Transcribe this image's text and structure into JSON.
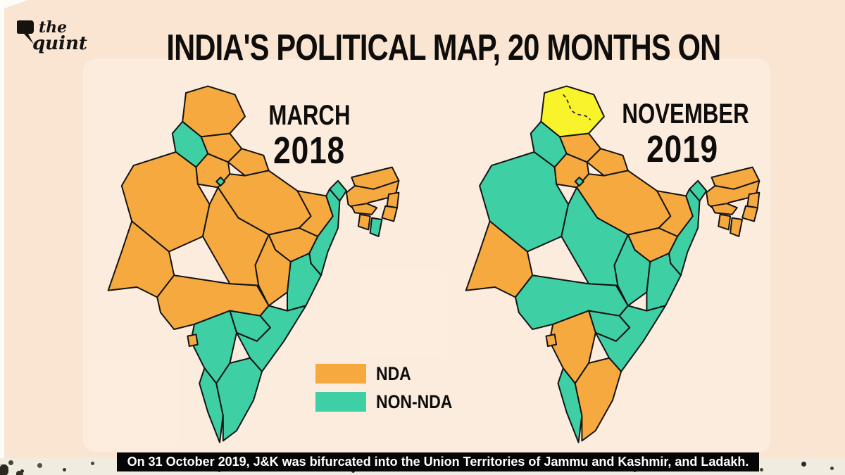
{
  "logo": {
    "icon": "speech-bubble-icon",
    "line1": "the",
    "line2": "quint"
  },
  "title": "INDIA'S POLITICAL MAP, 20 MONTHS ON",
  "legend": [
    {
      "label": "NDA",
      "color": "#F6A93E"
    },
    {
      "label": "NON-NDA",
      "color": "#3ECFA5"
    }
  ],
  "footnote": "On 31 October 2019, J&K was bifurcated into the Union Territories of Jammu and Kashmir, and Ladakh.",
  "colors": {
    "background": "#F9E5D2",
    "nda_orange": "#F6A93E",
    "non_nda_teal": "#3ECFA5",
    "union_territory_yellow": "#F8F32B",
    "map_outline": "#141414",
    "footnote_bg": "#050505",
    "footnote_text": "#FFFFFF"
  },
  "map_data": {
    "type": "choropleth",
    "status_colors": {
      "NDA": "#F6A93E",
      "NON-NDA": "#3ECFA5",
      "UT": "#F8F32B"
    },
    "maps": [
      {
        "id": "march-2018",
        "month": "MARCH",
        "year": "2018",
        "states": {
          "jammu-kashmir": "NDA",
          "himachal-pradesh": "NDA",
          "punjab": "NON-NDA",
          "uttarakhand": "NDA",
          "haryana": "NDA",
          "delhi": "NON-NDA",
          "rajasthan": "NDA",
          "uttar-pradesh": "NDA",
          "bihar": "NDA",
          "sikkim": "NON-NDA",
          "west-bengal": "NON-NDA",
          "arunachal-pradesh": "NDA",
          "assam": "NDA",
          "meghalaya": "NDA",
          "nagaland": "NDA",
          "manipur": "NDA",
          "mizoram": "NON-NDA",
          "tripura": "NDA",
          "jharkhand": "NDA",
          "chhattisgarh": "NDA",
          "odisha": "NON-NDA",
          "madhya-pradesh": "NDA",
          "gujarat": "NDA",
          "maharashtra": "NDA",
          "telangana": "NON-NDA",
          "andhra-pradesh": "NON-NDA",
          "karnataka": "NON-NDA",
          "goa": "NDA",
          "kerala": "NON-NDA",
          "tamil-nadu": "NON-NDA"
        }
      },
      {
        "id": "november-2019",
        "month": "NOVEMBER",
        "year": "2019",
        "states": {
          "jammu-kashmir": "UT",
          "himachal-pradesh": "NDA",
          "punjab": "NON-NDA",
          "uttarakhand": "NDA",
          "haryana": "NDA",
          "delhi": "NON-NDA",
          "rajasthan": "NON-NDA",
          "uttar-pradesh": "NDA",
          "bihar": "NDA",
          "sikkim": "NON-NDA",
          "west-bengal": "NON-NDA",
          "arunachal-pradesh": "NDA",
          "assam": "NDA",
          "meghalaya": "NDA",
          "nagaland": "NDA",
          "manipur": "NDA",
          "mizoram": "NDA",
          "tripura": "NDA",
          "jharkhand": "NDA",
          "chhattisgarh": "NON-NDA",
          "odisha": "NON-NDA",
          "madhya-pradesh": "NON-NDA",
          "gujarat": "NDA",
          "maharashtra": "NON-NDA",
          "telangana": "NON-NDA",
          "andhra-pradesh": "NON-NDA",
          "karnataka": "NDA",
          "goa": "NDA",
          "kerala": "NON-NDA",
          "tamil-nadu": "NDA"
        }
      }
    ]
  }
}
